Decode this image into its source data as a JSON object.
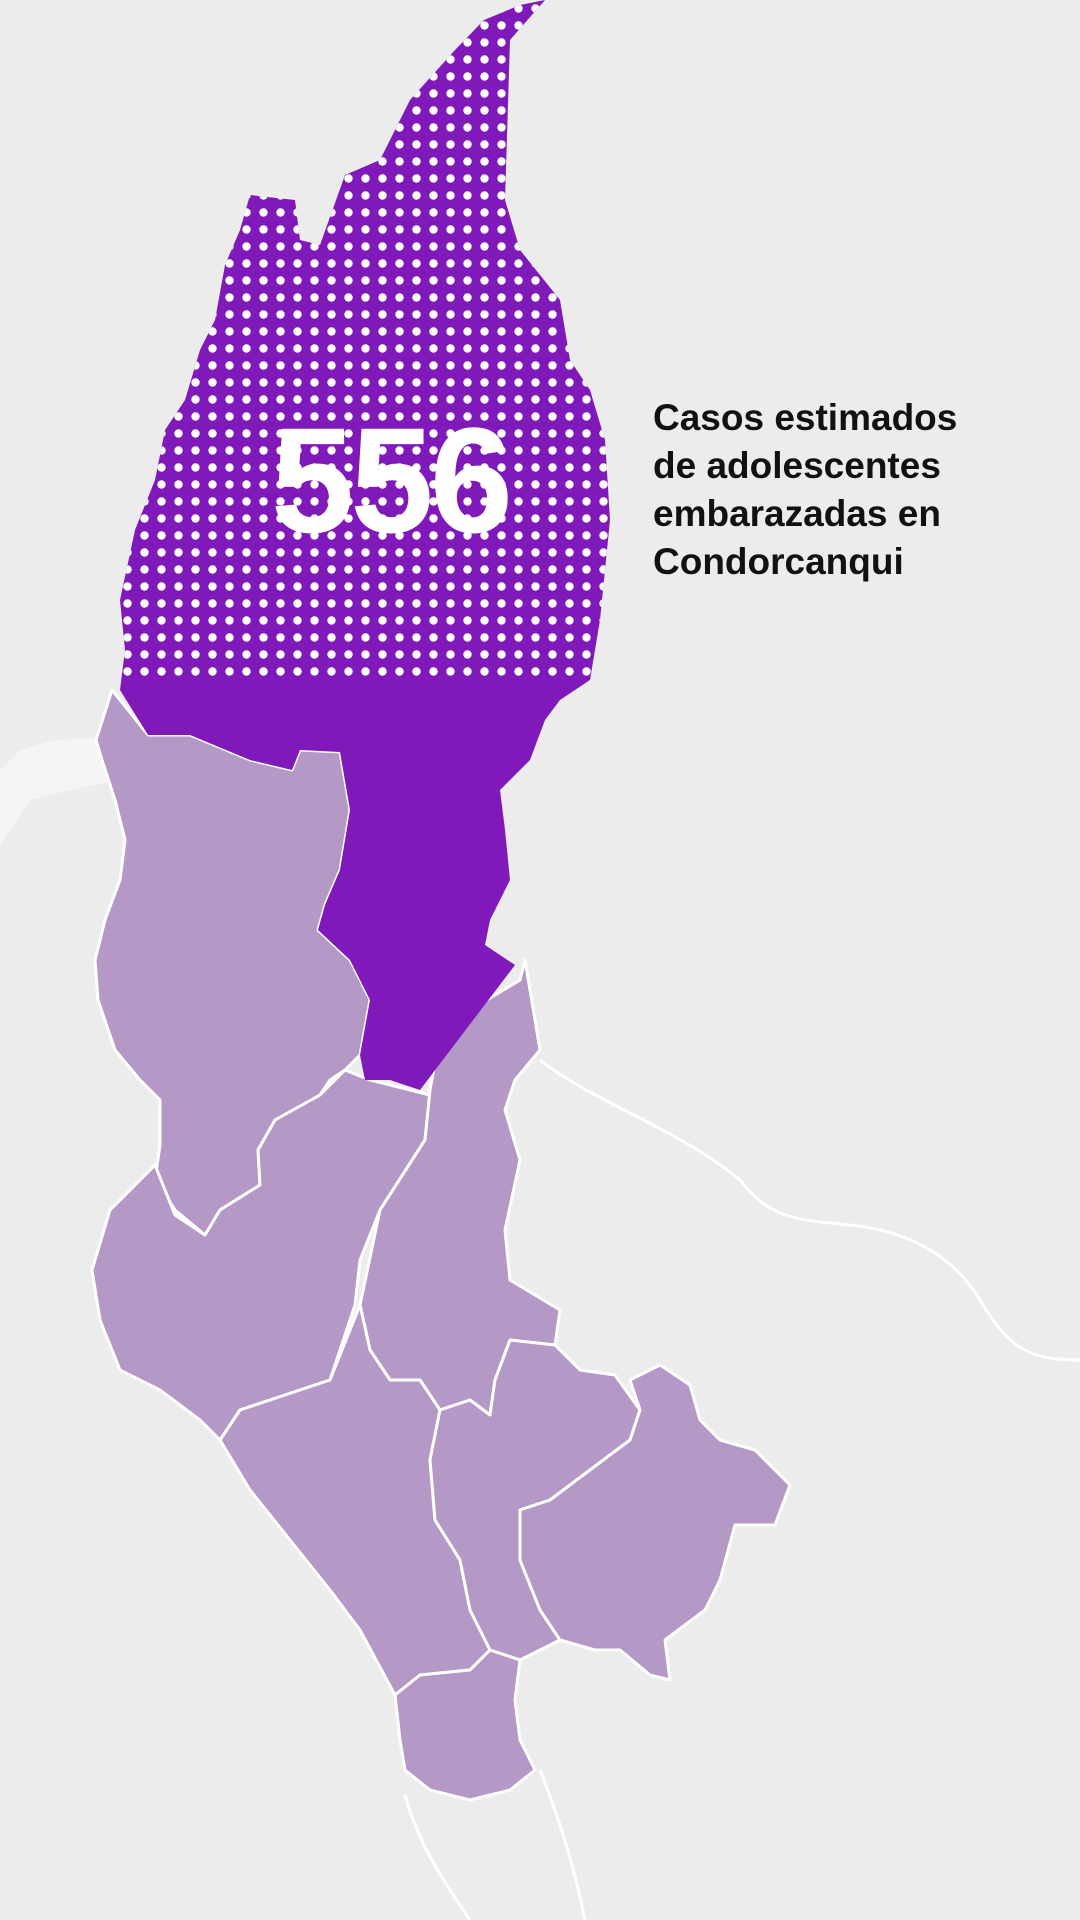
{
  "map": {
    "highlighted_province": "Condorcanqui",
    "highlight_value": "556",
    "caption_lines": [
      "Casos estimados",
      "de adolescentes",
      "embarazadas en",
      "Condorcanqui"
    ]
  },
  "colors": {
    "background": "#ececed",
    "land_outline": "#ffffff",
    "highlight_fill": "#8019b9",
    "other_provinces_fill": "#b498c6",
    "dot_pattern": "#ffffff",
    "caption_text": "#111111"
  }
}
